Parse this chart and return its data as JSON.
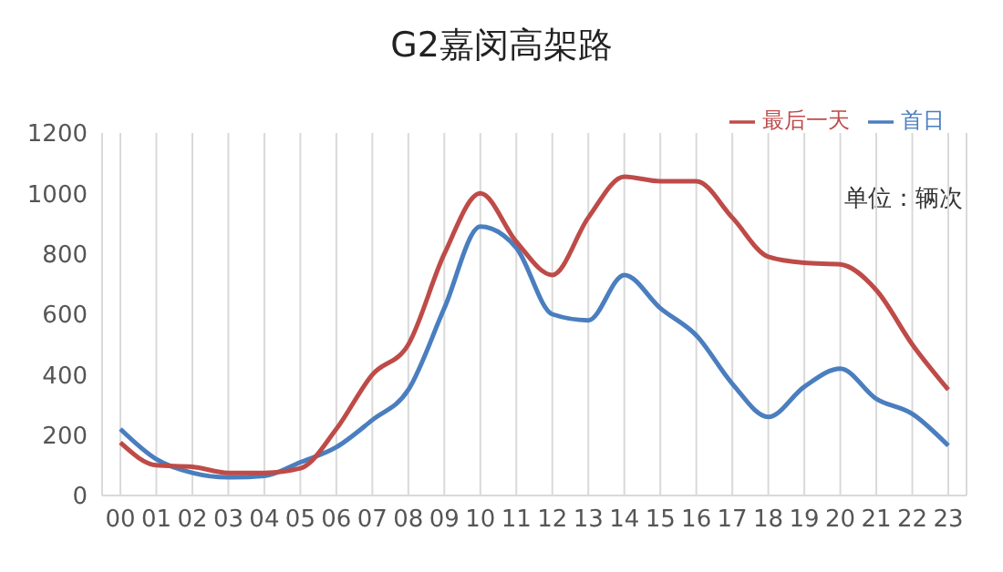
{
  "chart_data": {
    "type": "line",
    "title": "G2嘉闵高架路",
    "annotations": [
      "单位：辆次"
    ],
    "categories": [
      "00",
      "01",
      "02",
      "03",
      "04",
      "05",
      "06",
      "07",
      "08",
      "09",
      "10",
      "11",
      "12",
      "13",
      "14",
      "15",
      "16",
      "17",
      "18",
      "19",
      "20",
      "21",
      "22",
      "23"
    ],
    "series": [
      {
        "name": "首日",
        "color": "#4a7ebf",
        "values": [
          220,
          120,
          75,
          60,
          65,
          110,
          160,
          250,
          350,
          620,
          890,
          820,
          600,
          580,
          730,
          620,
          530,
          370,
          260,
          360,
          420,
          320,
          270,
          165
        ]
      },
      {
        "name": "最后一天",
        "color": "#be4b48",
        "values": [
          175,
          100,
          95,
          75,
          75,
          90,
          220,
          400,
          500,
          800,
          1000,
          840,
          730,
          920,
          1055,
          1040,
          1040,
          920,
          790,
          770,
          765,
          680,
          500,
          350
        ]
      }
    ],
    "ylim": [
      0,
      1200
    ],
    "yticks": [
      0,
      200,
      400,
      600,
      800,
      1000,
      1200
    ],
    "grid": "x",
    "legend": "top right",
    "marker": "none",
    "line_style": "solid"
  }
}
